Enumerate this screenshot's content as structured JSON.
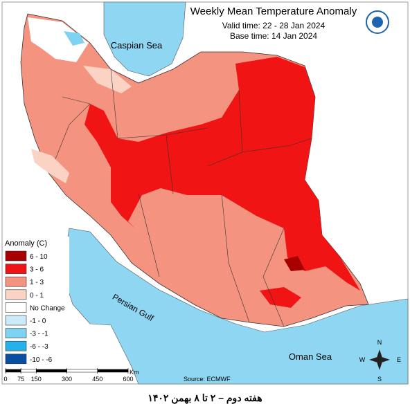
{
  "header": {
    "title": "Weekly Mean Temperature Anomaly",
    "valid_time": "Valid time: 22 - 28 Jan 2024",
    "base_time": "Base time: 14 Jan 2024"
  },
  "legend": {
    "title": "Anomaly (C)",
    "items": [
      {
        "label": "6 - 10",
        "color": "#a80000"
      },
      {
        "label": "3 - 6",
        "color": "#f01414"
      },
      {
        "label": "1 - 3",
        "color": "#f4937f"
      },
      {
        "label": "0 - 1",
        "color": "#fbd3c4"
      },
      {
        "label": "No Change",
        "color": "#ffffff"
      },
      {
        "label": "-1 - 0",
        "color": "#cdeaf8"
      },
      {
        "label": "-3 - -1",
        "color": "#7fd3f2"
      },
      {
        "label": "-6 - -3",
        "color": "#25b2ea"
      },
      {
        "label": "-10 - -6",
        "color": "#0a4fa3"
      }
    ]
  },
  "scale": {
    "unit": "Km",
    "ticks": [
      0,
      75,
      150,
      300,
      450,
      600
    ]
  },
  "seas": [
    "Caspian Sea",
    "Persian Gulf",
    "Oman Sea"
  ],
  "source": "Source: ECMWF",
  "compass": {
    "north": "N",
    "east": "E",
    "south": "S",
    "west": "W"
  },
  "caption": "هفته دوم – ۲ تا ۸ بهمن ۱۴۰۲"
}
